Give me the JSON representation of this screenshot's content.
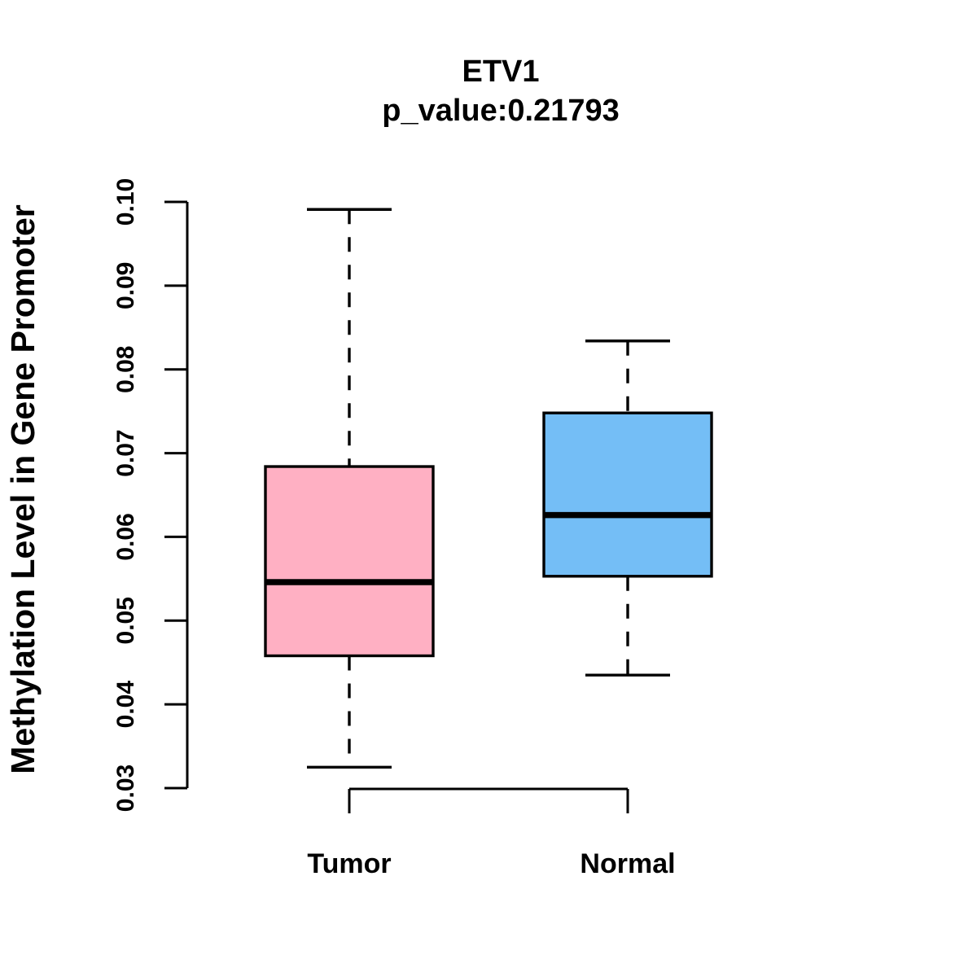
{
  "chart_data": {
    "type": "boxplot",
    "title": "ETV1",
    "subtitle": "p_value:0.21793",
    "ylabel": "Methylation Level in Gene Promoter",
    "xlabel": "",
    "ylim": [
      0.03,
      0.1
    ],
    "ytick_labels": [
      "0.03",
      "0.04",
      "0.05",
      "0.06",
      "0.07",
      "0.08",
      "0.09",
      "0.10"
    ],
    "grid": false,
    "legend": "none",
    "categories": [
      "Tumor",
      "Normal"
    ],
    "series": [
      {
        "name": "Tumor",
        "fill": "#ffb0c3",
        "whisker_low": 0.0325,
        "q1": 0.0458,
        "median": 0.0546,
        "q3": 0.0684,
        "whisker_high": 0.0991,
        "outliers": []
      },
      {
        "name": "Normal",
        "fill": "#74bef6",
        "whisker_low": 0.0435,
        "q1": 0.0553,
        "median": 0.0626,
        "q3": 0.0748,
        "whisker_high": 0.0834,
        "outliers": []
      }
    ],
    "box_border_color": "#000000",
    "median_color": "#000000",
    "axis_color": "#000000",
    "background_color": "#ffffff"
  }
}
